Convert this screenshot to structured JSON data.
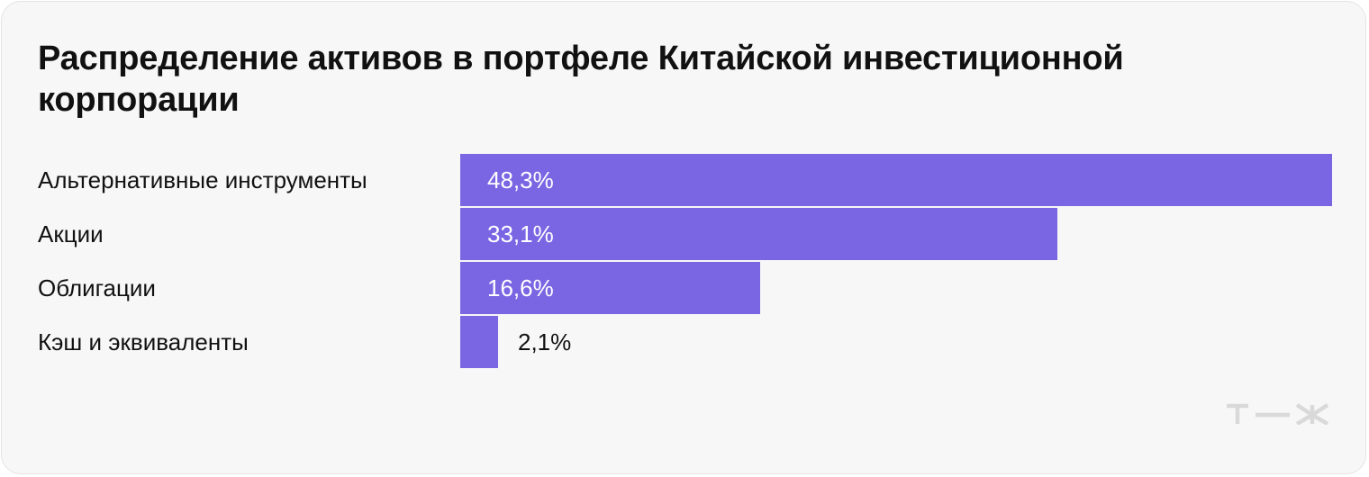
{
  "title": "Распределение активов в портфеле Китайской инвестиционной корпорации",
  "colors": {
    "bar": "#7a66e3",
    "label_inside": "#ffffff",
    "label_outside": "#111111",
    "logo": "#d9d9d9"
  },
  "logo": {
    "icon": "tzh-logo-icon",
    "text": "Т—Ж"
  },
  "chart_data": {
    "type": "bar",
    "orientation": "horizontal",
    "title": "Распределение активов в портфеле Китайской инвестиционной корпорации",
    "xlabel": "",
    "ylabel": "",
    "categories": [
      "Альтернативные инструменты",
      "Акции",
      "Облигации",
      "Кэш и эквиваленты"
    ],
    "values": [
      48.3,
      33.1,
      16.6,
      2.1
    ],
    "value_labels": [
      "48,3%",
      "33,1%",
      "16,6%",
      "2,1%"
    ],
    "unit": "%",
    "xlim": [
      0,
      48.3
    ],
    "grid": false,
    "legend": "none"
  }
}
